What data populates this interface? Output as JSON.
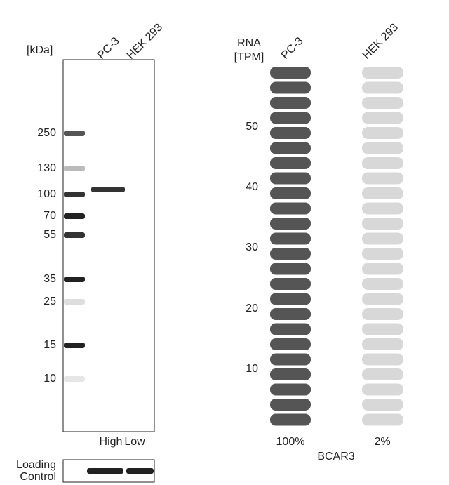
{
  "blot": {
    "unit_label": "[kDa]",
    "lanes": [
      "PC-3",
      "HEK 293"
    ],
    "markers": [
      "250",
      "130",
      "100",
      "70",
      "55",
      "35",
      "25",
      "15",
      "10"
    ],
    "expression_labels": [
      "High",
      "Low"
    ],
    "loading_control_label": [
      "Loading",
      "Control"
    ]
  },
  "rna": {
    "axis_label": [
      "RNA",
      "[TPM]"
    ],
    "cell_lines": [
      "PC-3",
      "HEK 293"
    ],
    "ticks": [
      "50",
      "40",
      "30",
      "20",
      "10"
    ],
    "percentages": [
      "100%",
      "2%"
    ],
    "gene": "BCAR3"
  }
}
